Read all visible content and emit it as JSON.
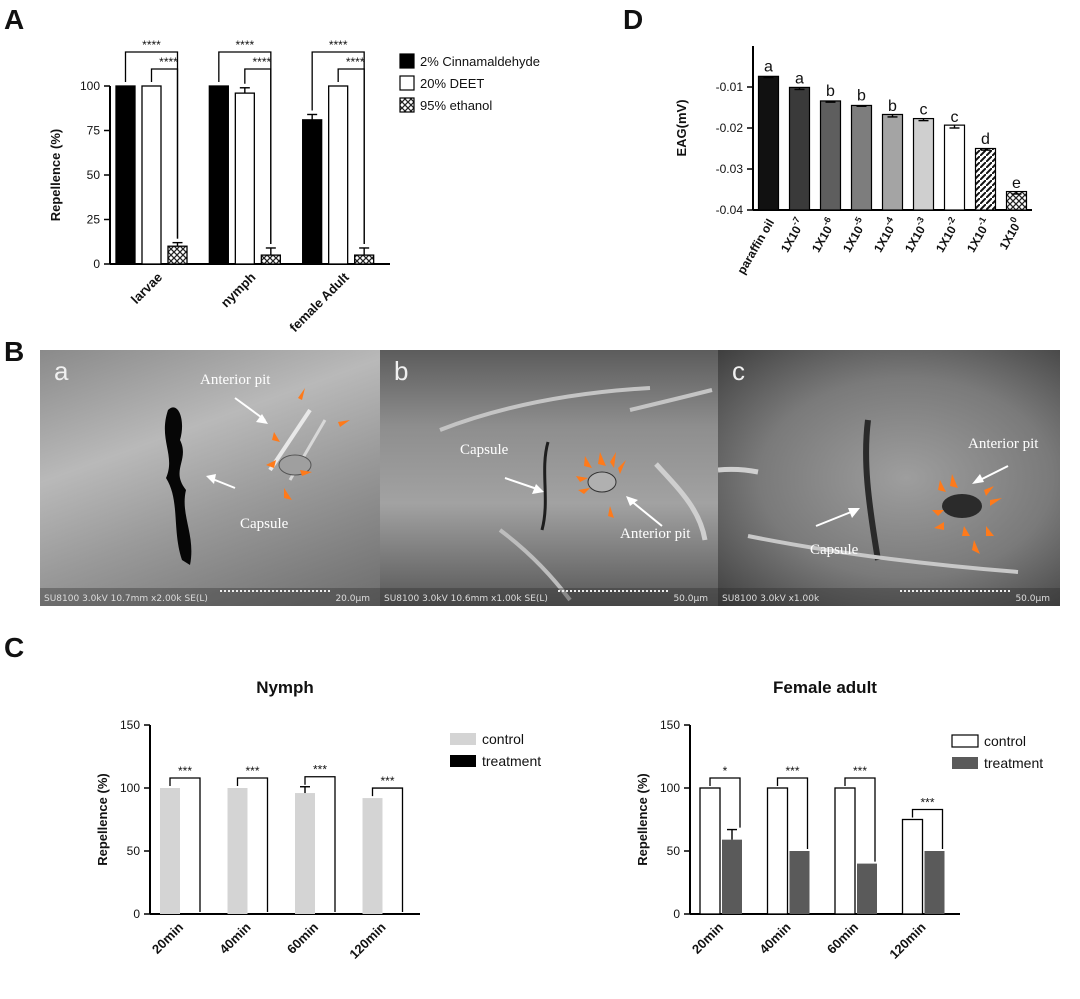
{
  "panels": {
    "A": "A",
    "B": "B",
    "C": "C",
    "D": "D"
  },
  "sem_images": [
    {
      "letter": "a",
      "info": "SU8100 3.0kV 10.7mm x2.00k SE(L)",
      "scale": "20.0μm",
      "labels": {
        "anterior_pit": "Anterior pit",
        "capsule": "Capsule"
      }
    },
    {
      "letter": "b",
      "info": "SU8100 3.0kV 10.6mm x1.00k SE(L)",
      "scale": "50.0μm",
      "labels": {
        "anterior_pit": "Anterior pit",
        "capsule": "Capsule"
      }
    },
    {
      "letter": "c",
      "info": "SU8100 3.0kV x1.00k",
      "scale": "50.0μm",
      "labels": {
        "anterior_pit": "Anterior pit",
        "capsule": "Capsule"
      }
    }
  ],
  "chart_data": [
    {
      "id": "A",
      "type": "bar",
      "title": "",
      "ylabel": "Repellence (%)",
      "xlabel": "",
      "ylim": [
        0,
        100
      ],
      "yticks": [
        "0",
        "25",
        "50",
        "75",
        "100"
      ],
      "categories": [
        "larvae",
        "nymph",
        "female Adult"
      ],
      "series": [
        {
          "name": "2% Cinnamaldehyde",
          "values": [
            100,
            100,
            81
          ],
          "errors": [
            0,
            0,
            3
          ],
          "color": "#000000"
        },
        {
          "name": "20% DEET",
          "values": [
            100,
            96,
            100
          ],
          "errors": [
            0,
            3,
            0
          ],
          "color": "#ffffff"
        },
        {
          "name": "95% ethanol",
          "values": [
            10,
            5,
            5
          ],
          "errors": [
            2,
            4,
            4
          ],
          "color": "hatch"
        }
      ],
      "significance": [
        "****",
        "****",
        "****",
        "****",
        "****",
        "****"
      ]
    },
    {
      "id": "D",
      "type": "bar",
      "title": "",
      "ylabel": "EAG(mV)",
      "ylim": [
        0,
        -0.04
      ],
      "yticks": [
        "-0.01",
        "-0.02",
        "-0.03",
        "-0.04"
      ],
      "categories": [
        "paraffin oil",
        "1X10-7",
        "1X10-6",
        "1X10-5",
        "1X10-4",
        "1X10-3",
        "1X10-2",
        "1X10-1",
        "1X100"
      ],
      "category_labels": [
        {
          "base": "paraffin oil",
          "exp": ""
        },
        {
          "base": "1X10",
          "exp": "-7"
        },
        {
          "base": "1X10",
          "exp": "-6"
        },
        {
          "base": "1X10",
          "exp": "-5"
        },
        {
          "base": "1X10",
          "exp": "-4"
        },
        {
          "base": "1X10",
          "exp": "-3"
        },
        {
          "base": "1X10",
          "exp": "-2"
        },
        {
          "base": "1X10",
          "exp": "-1"
        },
        {
          "base": "1X10",
          "exp": "0"
        }
      ],
      "values": [
        -0.0074,
        -0.0101,
        -0.0134,
        -0.0145,
        -0.0167,
        -0.0177,
        -0.0193,
        -0.025,
        -0.0355
      ],
      "errors": [
        0.0003,
        0.0005,
        0.0003,
        0.0002,
        0.0006,
        0.0005,
        0.0007,
        0.0004,
        0.0006
      ],
      "letters": [
        "a",
        "a",
        "b",
        "b",
        "b",
        "c",
        "c",
        "d",
        "e"
      ],
      "colors": [
        "#111111",
        "#3a3a3a",
        "#5e5e5e",
        "#7d7d7d",
        "#a4a4a4",
        "#cfcfcf",
        "#ffffff",
        "diag",
        "cross"
      ]
    },
    {
      "id": "C-nymph",
      "type": "bar",
      "title": "Nymph",
      "ylabel": "Repellence (%)",
      "ylim": [
        0,
        150
      ],
      "yticks": [
        "0",
        "50",
        "100",
        "150"
      ],
      "categories": [
        "20min",
        "40min",
        "60min",
        "120min"
      ],
      "series": [
        {
          "name": "control",
          "values": [
            100,
            100,
            96,
            92
          ],
          "errors": [
            0,
            0,
            5,
            0
          ],
          "color": "#d4d4d4"
        },
        {
          "name": "treatment",
          "values": [
            0,
            0,
            0,
            0
          ],
          "errors": [
            0,
            0,
            0,
            0
          ],
          "color": "#000000"
        }
      ],
      "significance": [
        "***",
        "***",
        "***",
        "***"
      ]
    },
    {
      "id": "C-female",
      "type": "bar",
      "title": "Female adult",
      "ylabel": "Repellence (%)",
      "ylim": [
        0,
        150
      ],
      "yticks": [
        "0",
        "50",
        "100",
        "150"
      ],
      "categories": [
        "20min",
        "40min",
        "60min",
        "120min"
      ],
      "series": [
        {
          "name": "control",
          "values": [
            100,
            100,
            100,
            75
          ],
          "errors": [
            0,
            0,
            0,
            0
          ],
          "color": "#ffffff"
        },
        {
          "name": "treatment",
          "values": [
            59,
            50,
            40,
            50
          ],
          "errors": [
            8,
            0,
            0,
            0
          ],
          "color": "#5a5a5a"
        }
      ],
      "significance": [
        "*",
        "***",
        "***",
        "***"
      ]
    }
  ]
}
